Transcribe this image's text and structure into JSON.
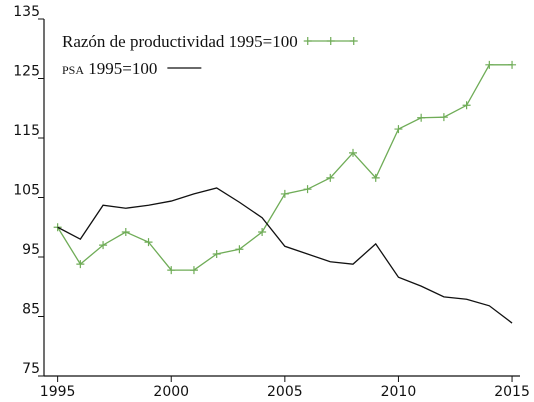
{
  "chart_data": {
    "type": "line",
    "x": [
      1995,
      1996,
      1997,
      1998,
      1999,
      2000,
      2001,
      2002,
      2003,
      2004,
      2005,
      2006,
      2007,
      2008,
      2009,
      2010,
      2011,
      2012,
      2013,
      2014,
      2015
    ],
    "series": [
      {
        "name": "Razón de productividad 1995=100",
        "color": "#6fac57",
        "marker": "plus",
        "values": [
          100,
          93.8,
          97.0,
          99.2,
          97.5,
          92.8,
          92.8,
          95.5,
          96.3,
          99.2,
          105.6,
          106.4,
          108.3,
          112.5,
          108.3,
          116.5,
          118.4,
          118.5,
          120.5,
          127.3,
          127.3
        ]
      },
      {
        "name": "psa 1995=100",
        "color": "#111111",
        "marker": "none",
        "values": [
          100,
          98.0,
          103.7,
          103.2,
          103.7,
          104.4,
          105.6,
          106.6,
          104.2,
          101.6,
          96.8,
          95.5,
          94.2,
          93.8,
          97.2,
          91.6,
          90.1,
          88.3,
          87.9,
          86.8,
          83.9
        ]
      }
    ],
    "xlim": [
      1994.4,
      2015.35
    ],
    "xticks": [
      1995,
      2000,
      2005,
      2010,
      2015
    ],
    "ylim": [
      75,
      135
    ],
    "yticks": [
      75,
      85,
      95,
      105,
      115,
      125,
      135
    ],
    "grid": false,
    "legend": "upper-left"
  }
}
